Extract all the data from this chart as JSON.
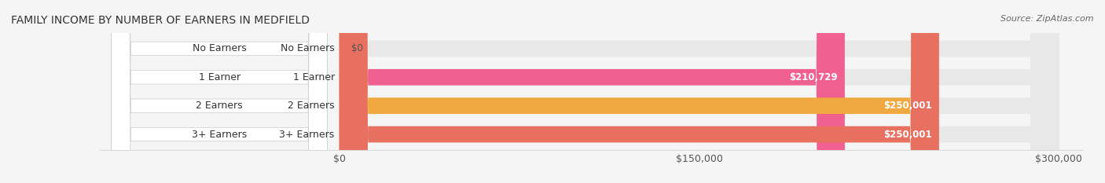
{
  "title": "FAMILY INCOME BY NUMBER OF EARNERS IN MEDFIELD",
  "source": "Source: ZipAtlas.com",
  "categories": [
    "No Earners",
    "1 Earner",
    "2 Earners",
    "3+ Earners"
  ],
  "values": [
    0,
    210729,
    250001,
    250001
  ],
  "bar_colors": [
    "#a8a8d8",
    "#f06090",
    "#f0a840",
    "#e87060"
  ],
  "label_bg_color": "#ffffff",
  "bar_label_colors": [
    "#555555",
    "#ffffff",
    "#ffffff",
    "#ffffff"
  ],
  "value_labels": [
    "$0",
    "$210,729",
    "$250,001",
    "$250,001"
  ],
  "xlim": [
    0,
    300000
  ],
  "xticks": [
    0,
    150000,
    300000
  ],
  "xtick_labels": [
    "$0",
    "$150,000",
    "$300,000"
  ],
  "background_color": "#f5f5f5",
  "bar_height": 0.55,
  "title_fontsize": 10,
  "source_fontsize": 8,
  "tick_fontsize": 9,
  "label_fontsize": 9,
  "value_fontsize": 8.5
}
